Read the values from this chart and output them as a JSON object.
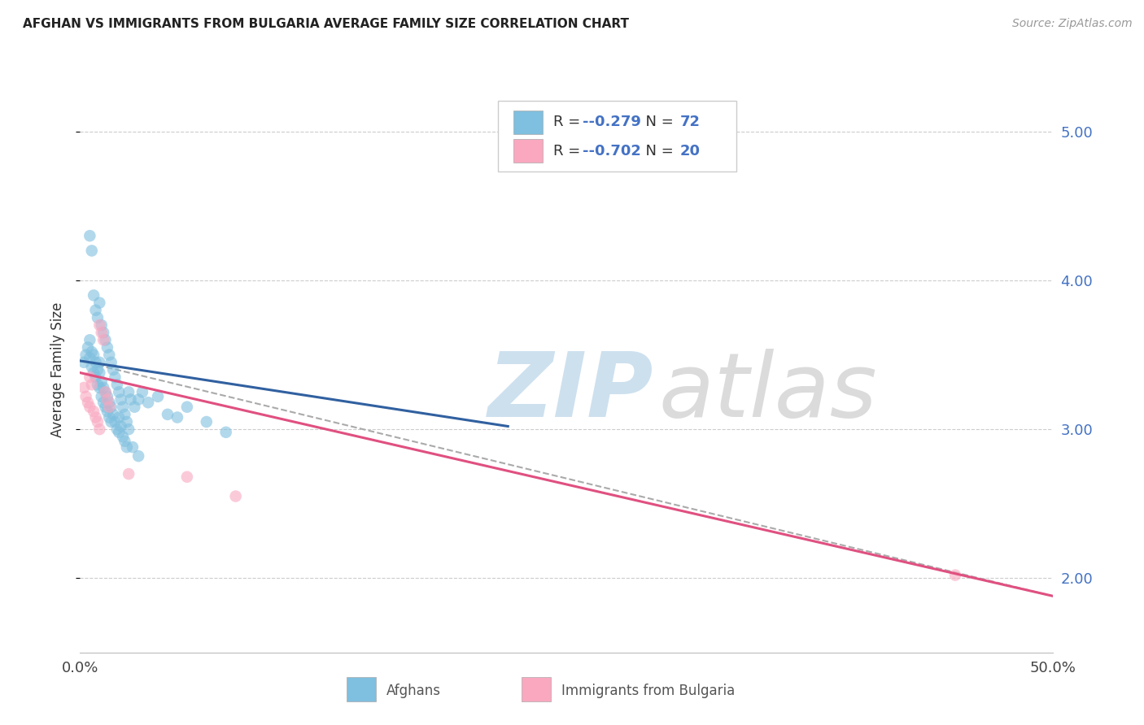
{
  "title": "AFGHAN VS IMMIGRANTS FROM BULGARIA AVERAGE FAMILY SIZE CORRELATION CHART",
  "source": "Source: ZipAtlas.com",
  "ylabel": "Average Family Size",
  "legend_label1": "Afghans",
  "legend_label2": "Immigrants from Bulgaria",
  "r1": "-0.279",
  "n1": "72",
  "r2": "-0.702",
  "n2": "20",
  "xlim": [
    0.0,
    50.0
  ],
  "ylim": [
    1.5,
    5.3
  ],
  "yticks": [
    2.0,
    3.0,
    4.0,
    5.0
  ],
  "xticks": [
    0.0,
    10.0,
    20.0,
    30.0,
    40.0,
    50.0
  ],
  "color_blue": "#7fbfdf",
  "color_pink": "#f9a8c0",
  "color_line_blue": "#3060a0",
  "color_line_pink": "#e05080",
  "color_dashed": "#aaaaaa",
  "blue_x": [
    0.2,
    0.3,
    0.4,
    0.5,
    0.5,
    0.6,
    0.6,
    0.7,
    0.7,
    0.8,
    0.8,
    0.9,
    0.9,
    1.0,
    1.0,
    1.0,
    1.1,
    1.1,
    1.2,
    1.2,
    1.3,
    1.3,
    1.4,
    1.4,
    1.5,
    1.5,
    1.6,
    1.6,
    1.7,
    1.8,
    1.9,
    2.0,
    2.0,
    2.1,
    2.2,
    2.3,
    2.4,
    2.5,
    2.6,
    2.8,
    3.0,
    3.2,
    3.5,
    4.0,
    4.5,
    5.0,
    5.5,
    6.5,
    7.5,
    0.5,
    0.6,
    0.7,
    0.8,
    0.9,
    1.0,
    1.1,
    1.2,
    1.3,
    1.4,
    1.5,
    1.6,
    1.7,
    1.8,
    1.9,
    2.0,
    2.1,
    2.2,
    2.3,
    2.4,
    2.5,
    2.7,
    3.0
  ],
  "blue_y": [
    3.45,
    3.5,
    3.55,
    3.6,
    3.48,
    3.52,
    3.42,
    3.5,
    3.38,
    3.45,
    3.35,
    3.4,
    3.3,
    3.38,
    3.28,
    3.45,
    3.32,
    3.22,
    3.28,
    3.18,
    3.25,
    3.15,
    3.22,
    3.12,
    3.18,
    3.08,
    3.15,
    3.05,
    3.1,
    3.05,
    3.0,
    3.08,
    2.98,
    3.02,
    2.95,
    2.92,
    2.88,
    3.25,
    3.2,
    3.15,
    3.2,
    3.25,
    3.18,
    3.22,
    3.1,
    3.08,
    3.15,
    3.05,
    2.98,
    4.3,
    4.2,
    3.9,
    3.8,
    3.75,
    3.85,
    3.7,
    3.65,
    3.6,
    3.55,
    3.5,
    3.45,
    3.4,
    3.35,
    3.3,
    3.25,
    3.2,
    3.15,
    3.1,
    3.05,
    3.0,
    2.88,
    2.82
  ],
  "pink_x": [
    0.2,
    0.3,
    0.4,
    0.5,
    0.5,
    0.6,
    0.7,
    0.8,
    0.9,
    1.0,
    1.0,
    1.1,
    1.2,
    1.3,
    1.4,
    1.5,
    2.5,
    5.5,
    8.0,
    45.0
  ],
  "pink_y": [
    3.28,
    3.22,
    3.18,
    3.15,
    3.35,
    3.3,
    3.12,
    3.08,
    3.05,
    3.0,
    3.7,
    3.65,
    3.6,
    3.25,
    3.2,
    3.15,
    2.7,
    2.68,
    2.55,
    2.02
  ],
  "blue_reg_x0": 0.0,
  "blue_reg_x1": 22.0,
  "blue_reg_y0": 3.46,
  "blue_reg_y1": 3.02,
  "pink_reg_x0": 0.0,
  "pink_reg_x1": 50.0,
  "pink_reg_y0": 3.38,
  "pink_reg_y1": 1.88,
  "dashed_reg_x0": 0.0,
  "dashed_reg_x1": 50.0,
  "dashed_reg_y0": 3.46,
  "dashed_reg_y1": 1.88
}
